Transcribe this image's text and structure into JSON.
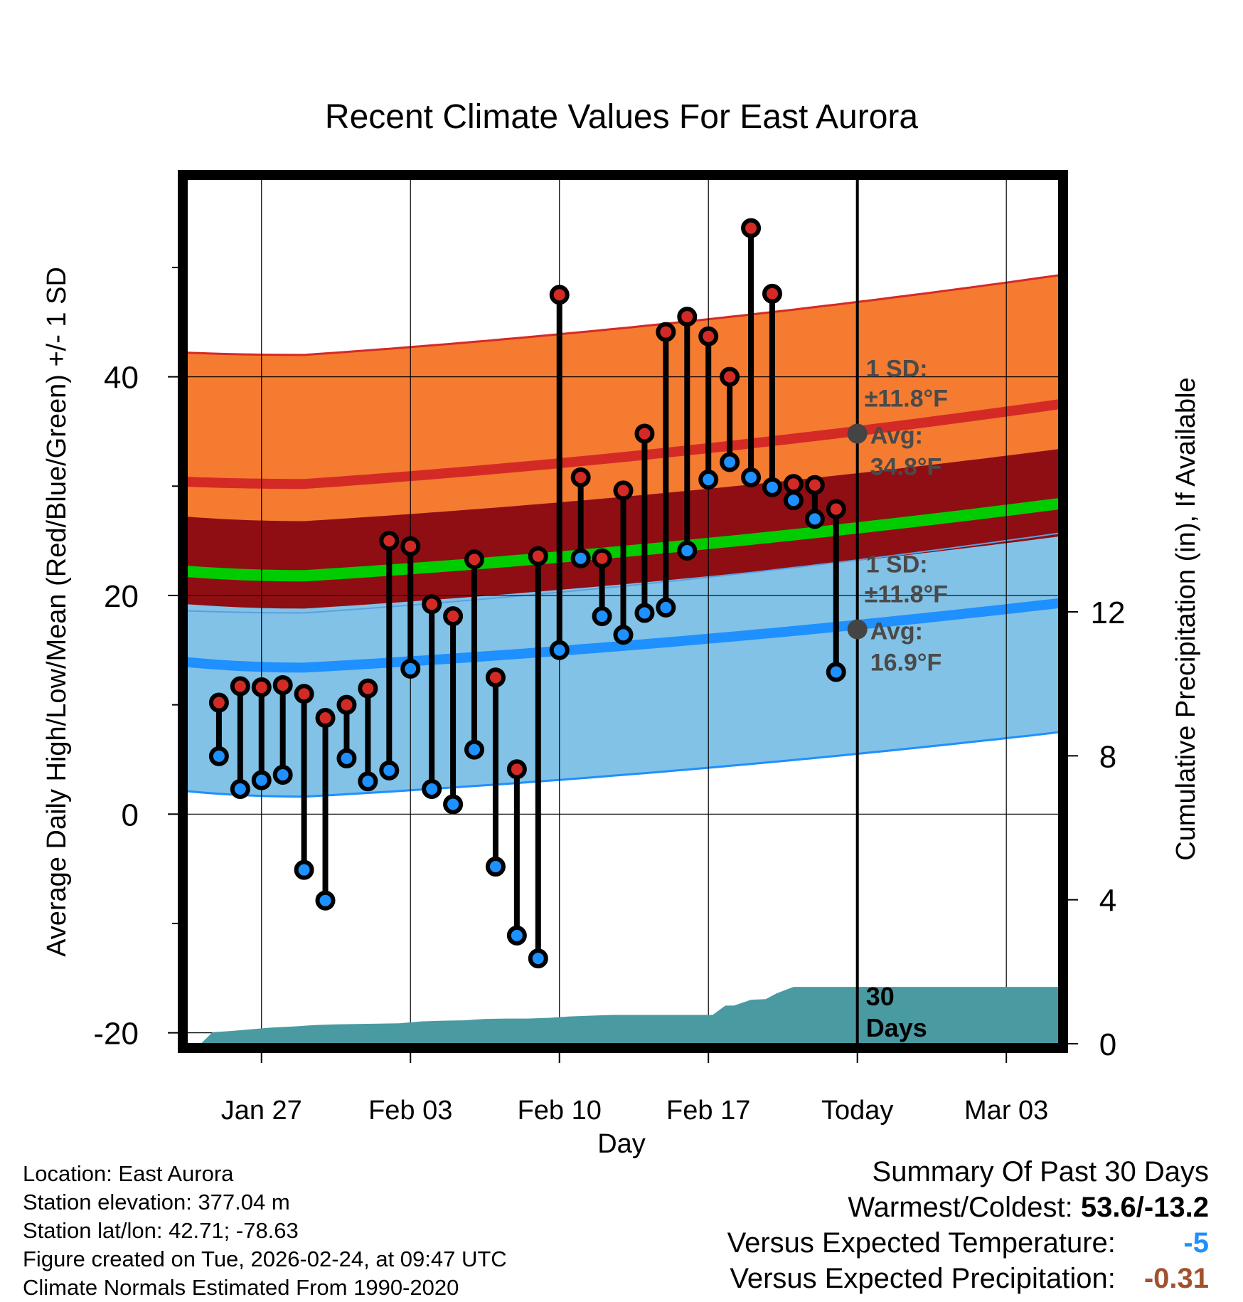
{
  "chart_data": {
    "type": "line",
    "title": "Recent Climate Values For East Aurora",
    "xlabel": "Day",
    "ylabel_left": "Average Daily High/Low/Mean (Red/Blue/Green) +/- 1 SD",
    "ylabel_right": "Cumulative Precipitation (in), If Available",
    "x_day_range": [
      -31.5,
      9.5
    ],
    "ylim_left": [
      -21,
      58
    ],
    "left_ticks": [
      -20,
      0,
      20,
      40
    ],
    "left_minor_ticks": [
      -10,
      10,
      30,
      50
    ],
    "ylim_right": [
      0,
      24
    ],
    "right_ticks": [
      0,
      4,
      8,
      12
    ],
    "x_ticks": [
      {
        "day": -28,
        "label": "Jan 27"
      },
      {
        "day": -21,
        "label": "Feb 03"
      },
      {
        "day": -14,
        "label": "Feb 10"
      },
      {
        "day": -7,
        "label": "Feb 17"
      },
      {
        "day": 0,
        "label": "Today"
      },
      {
        "day": 7,
        "label": "Mar 03"
      }
    ],
    "normals": {
      "avg_high_start": 30.4,
      "avg_high_min": 30.2,
      "avg_high_end": 37.5,
      "avg_low_start": 13.9,
      "avg_low_min": 13.4,
      "avg_low_end": 19.3,
      "avg_mean_start": 22.2,
      "avg_mean_min": 21.8,
      "avg_mean_end": 28.4,
      "sd_high": 11.8,
      "sd_low": 11.8,
      "mean_band": 5.0
    },
    "daily_highs": [
      10.2,
      11.7,
      11.6,
      11.8,
      11.0,
      8.8,
      10.0,
      11.5,
      25.0,
      24.5,
      19.2,
      18.1,
      23.3,
      12.5,
      4.1,
      23.6,
      47.5,
      30.8,
      23.4,
      29.6,
      34.8,
      44.1,
      45.5,
      43.7,
      40.0,
      53.6,
      47.6,
      30.2,
      30.1,
      27.9
    ],
    "daily_lows": [
      5.3,
      2.3,
      3.1,
      3.6,
      -5.1,
      -7.9,
      5.1,
      3.0,
      4.0,
      13.3,
      2.3,
      0.9,
      5.9,
      -4.8,
      -11.1,
      -13.2,
      15.0,
      23.4,
      18.1,
      16.4,
      18.4,
      18.9,
      24.1,
      30.6,
      32.2,
      30.8,
      29.9,
      28.7,
      27.0,
      13.0
    ],
    "precip_cumulative_days": [
      -30.8,
      -30.3,
      -29.5,
      -28.5,
      -27.5,
      -26.5,
      -25.5,
      -24.5,
      -23.5,
      -22.5,
      -21.5,
      -20.5,
      -19.5,
      -18.5,
      -17.5,
      -16.5,
      -15.5,
      -14.5,
      -13.5,
      -12.5,
      -11.5,
      -10.5,
      -9.5,
      -8.5,
      -7.5,
      -6.8,
      -6.2,
      -5.8,
      -5.0,
      -4.3,
      -3.8,
      -3.0,
      -2.2,
      -1.0,
      0.0,
      9.5
    ],
    "precip_cumulative_values": [
      0.03,
      0.32,
      0.35,
      0.4,
      0.45,
      0.48,
      0.52,
      0.54,
      0.55,
      0.56,
      0.57,
      0.62,
      0.64,
      0.65,
      0.69,
      0.7,
      0.7,
      0.72,
      0.76,
      0.78,
      0.8,
      0.8,
      0.8,
      0.8,
      0.8,
      0.8,
      1.06,
      1.06,
      1.22,
      1.24,
      1.4,
      1.58,
      1.58,
      1.58,
      1.58,
      1.58
    ],
    "annotations": {
      "high_sd_lines": [
        "1 SD:",
        "±11.8°F",
        "Avg:",
        "34.8°F"
      ],
      "low_sd_lines": [
        "1 SD:",
        "±11.8°F",
        "Avg:",
        "16.9°F"
      ],
      "today_avg_high": 34.8,
      "today_avg_low": 16.9,
      "window_lines": [
        "30",
        "Days"
      ]
    },
    "colors": {
      "high_band": "#f47b30",
      "high_line": "#d42a26",
      "mean_band": "#8f0e14",
      "mean_line": "#00cc00",
      "low_band": "#82c2e6",
      "low_line": "#1e90ff",
      "precip": "#4a9aa2",
      "high_marker": "#d42a26",
      "low_marker": "#1e90ff",
      "annotation_text": "#4a4a4a"
    }
  },
  "meta": {
    "location": "Location: East Aurora",
    "elevation": "Station elevation: 377.04 m",
    "latlon": "Station lat/lon: 42.71; -78.63",
    "created": "Figure created on Tue, 2026-02-24, at 09:47 UTC",
    "normals": "Climate Normals Estimated From 1990-2020"
  },
  "summary": {
    "title": "Summary Of Past 30 Days",
    "warmest_label": "Warmest/Coldest:",
    "warmest_value": "53.6/-13.2",
    "temp_label": "Versus Expected Temperature:",
    "temp_value": "-5",
    "temp_color": "#1e90ff",
    "precip_label": "Versus Expected Precipitation:",
    "precip_value": "-0.31",
    "precip_color": "#a0522d"
  }
}
